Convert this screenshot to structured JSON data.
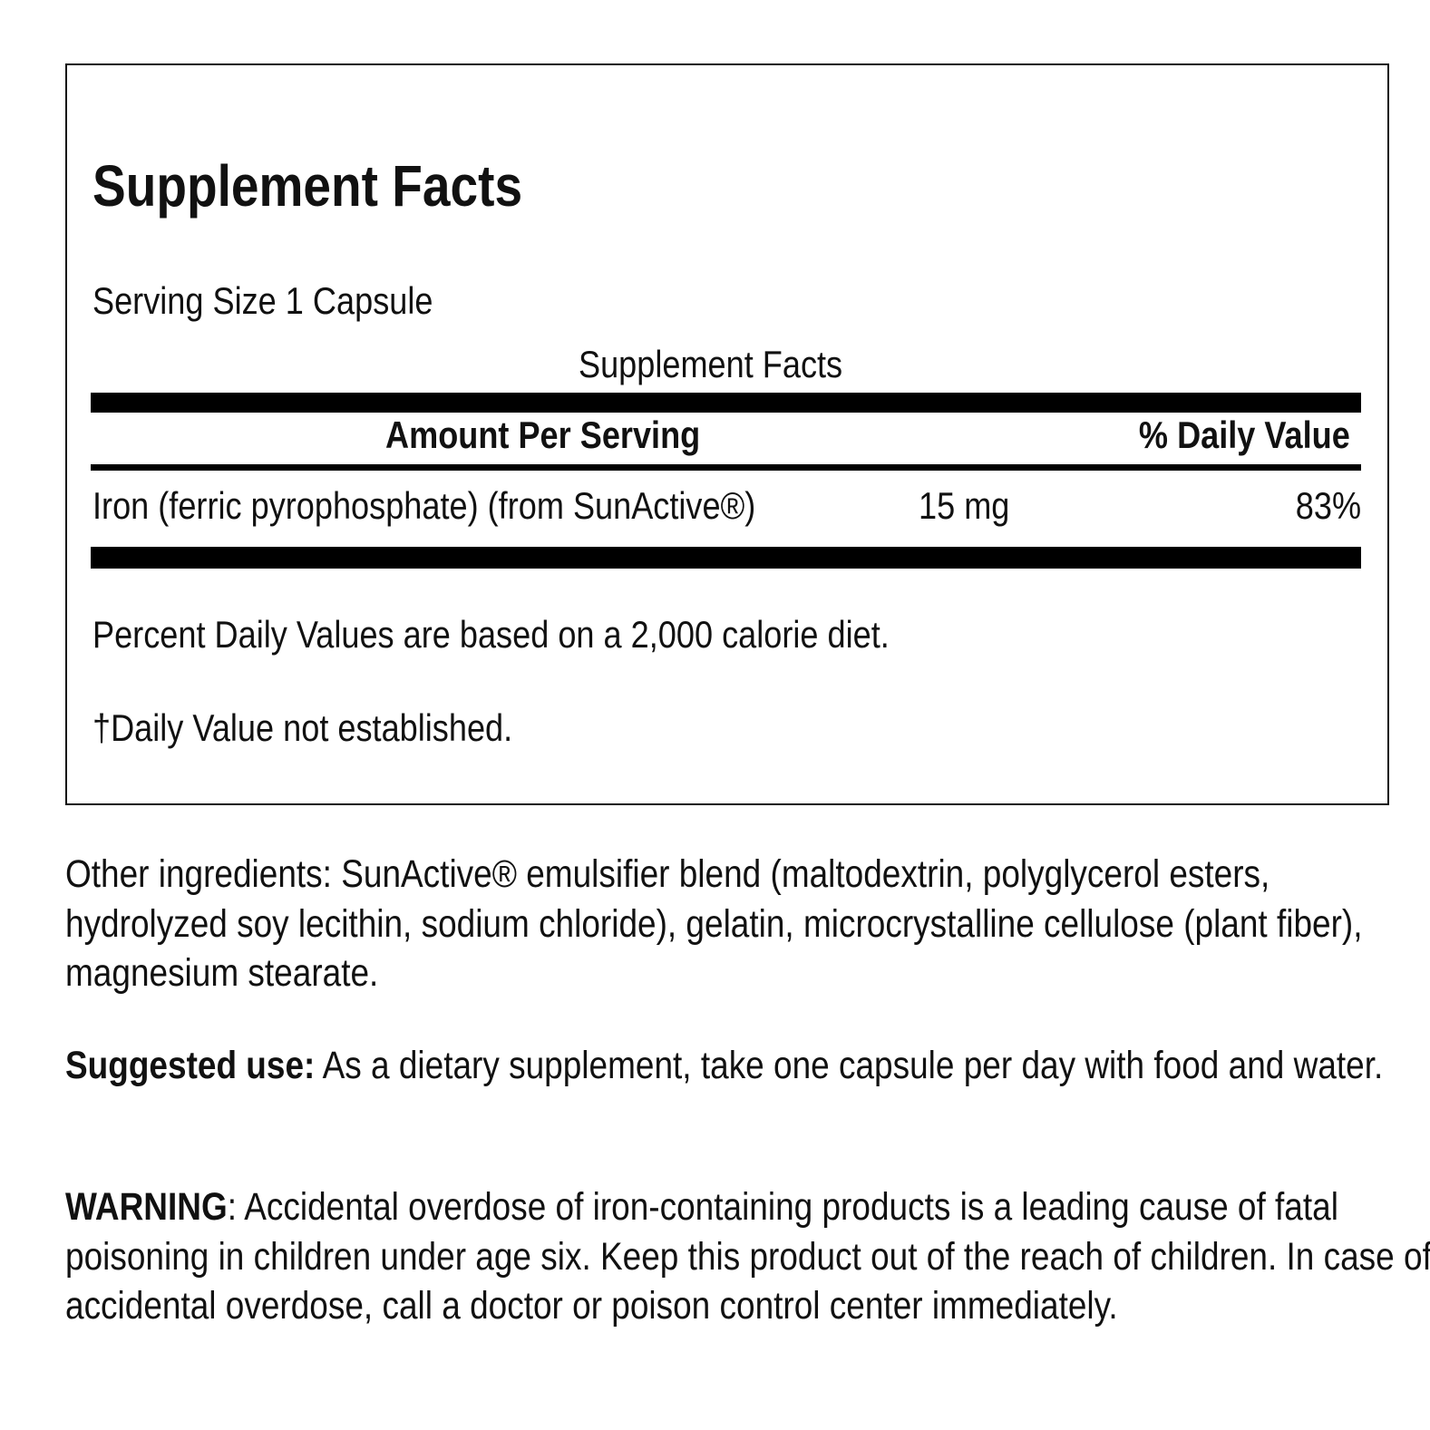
{
  "panel": {
    "title": "Supplement Facts",
    "serving_size": "Serving Size 1 Capsule",
    "table_caption": "Supplement Facts",
    "header": {
      "amount": "Amount Per Serving",
      "daily_value": "% Daily Value"
    },
    "rows": [
      {
        "name": "Iron (ferric pyrophosphate) (from SunActive®)",
        "amount": "15 mg",
        "dv": "83%"
      }
    ],
    "note_percent": "Percent Daily Values are based on a 2,000 calorie diet.",
    "note_dagger": "†Daily Value not established."
  },
  "other_ingredients": "Other ingredients: SunActive® emulsifier blend (maltodextrin, polyglycerol esters, hydrolyzed soy lecithin, sodium chloride), gelatin, microcrystalline cellulose (plant fiber), magnesium stearate.",
  "suggested_use": {
    "label": "Suggested use:",
    "text": " As a dietary supplement, take one capsule per day with food and water."
  },
  "warning": {
    "label": "WARNING",
    "text": ": Accidental overdose of iron-containing products is a leading cause of fatal poisoning in children under age six. Keep this product out of the reach of children. In case of accidental overdose, call a doctor or poison control center immediately."
  }
}
